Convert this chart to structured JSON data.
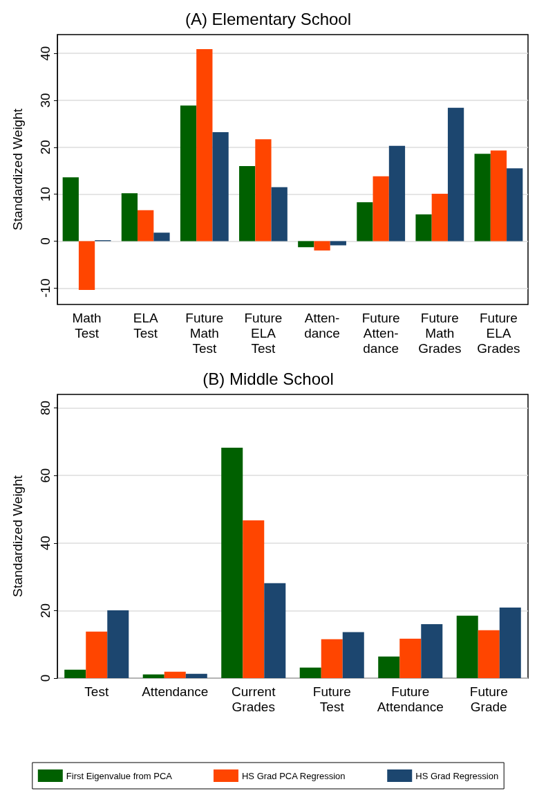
{
  "chart_data": [
    {
      "type": "bar",
      "title": "(A) Elementary School",
      "ylabel": "Standardized Weight",
      "categories": [
        "Math\nTest",
        "ELA\nTest",
        "Future\nMath\nTest",
        "Future\nELA\nTest",
        "Atten-\ndance",
        "Future\nAtten-\ndance",
        "Future\nMath\nGrades",
        "Future\nELA\nGrades"
      ],
      "series": [
        {
          "color": "#006000",
          "values": [
            13.6,
            10.2,
            28.9,
            16.0,
            -1.3,
            8.3,
            5.7,
            18.6
          ]
        },
        {
          "color": "#ff4500",
          "values": [
            -10.4,
            6.6,
            40.9,
            21.7,
            -2.0,
            13.8,
            10.1,
            19.3
          ]
        },
        {
          "color": "#1c466f",
          "values": [
            0.2,
            1.8,
            23.2,
            11.5,
            -0.9,
            20.3,
            28.4,
            15.5
          ]
        }
      ],
      "ylim": [
        -13.5,
        44
      ],
      "yticks": [
        -10,
        0,
        10,
        20,
        30,
        40
      ],
      "grid": "y",
      "legend": false
    },
    {
      "type": "bar",
      "title": "(B) Middle School",
      "ylabel": "Standardized Weight",
      "categories": [
        "Test",
        "Attendance",
        "Current\nGrades",
        "Future\nTest",
        "Future\nAttendance",
        "Future\nGrade"
      ],
      "series": [
        {
          "name": "First Eigenvalue from PCA",
          "color": "#006000",
          "values": [
            2.5,
            1.1,
            68.2,
            3.1,
            6.4,
            18.5
          ]
        },
        {
          "name": "HS Grad PCA Regression",
          "color": "#ff4500",
          "values": [
            13.8,
            1.9,
            46.7,
            11.5,
            11.7,
            14.2
          ]
        },
        {
          "name": "HS Grad Regression",
          "color": "#1c466f",
          "values": [
            20.1,
            1.3,
            28.1,
            13.6,
            16.0,
            20.9
          ]
        }
      ],
      "ylim": [
        0,
        84
      ],
      "yticks": [
        0,
        20,
        40,
        60,
        80
      ],
      "grid": "y",
      "legend": "bottom"
    }
  ]
}
